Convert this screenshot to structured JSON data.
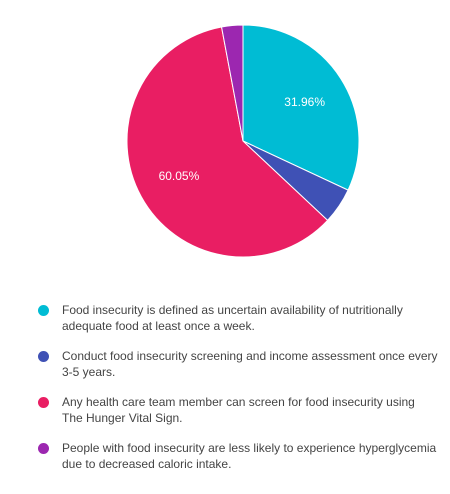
{
  "chart_data": {
    "type": "pie",
    "title": "",
    "slices": [
      {
        "label": "Food insecurity is defined as uncertain availability of nutritionally adequate food at least once a week.",
        "value": 31.96,
        "color": "#00bcd4",
        "show_label": true
      },
      {
        "label": "Conduct food insecurity screening and income assessment once every 3-5 years.",
        "value": 5.03,
        "color": "#3f51b5",
        "show_label": false
      },
      {
        "label": "Any health care team member can screen for food insecurity using The Hunger Vital Sign.",
        "value": 60.05,
        "color": "#e91e63",
        "show_label": true
      },
      {
        "label": "People with food insecurity are less likely to experience hyperglycemia due to decreased caloric intake.",
        "value": 2.96,
        "color": "#9c27b0",
        "show_label": false
      }
    ],
    "legend_position": "bottom"
  }
}
